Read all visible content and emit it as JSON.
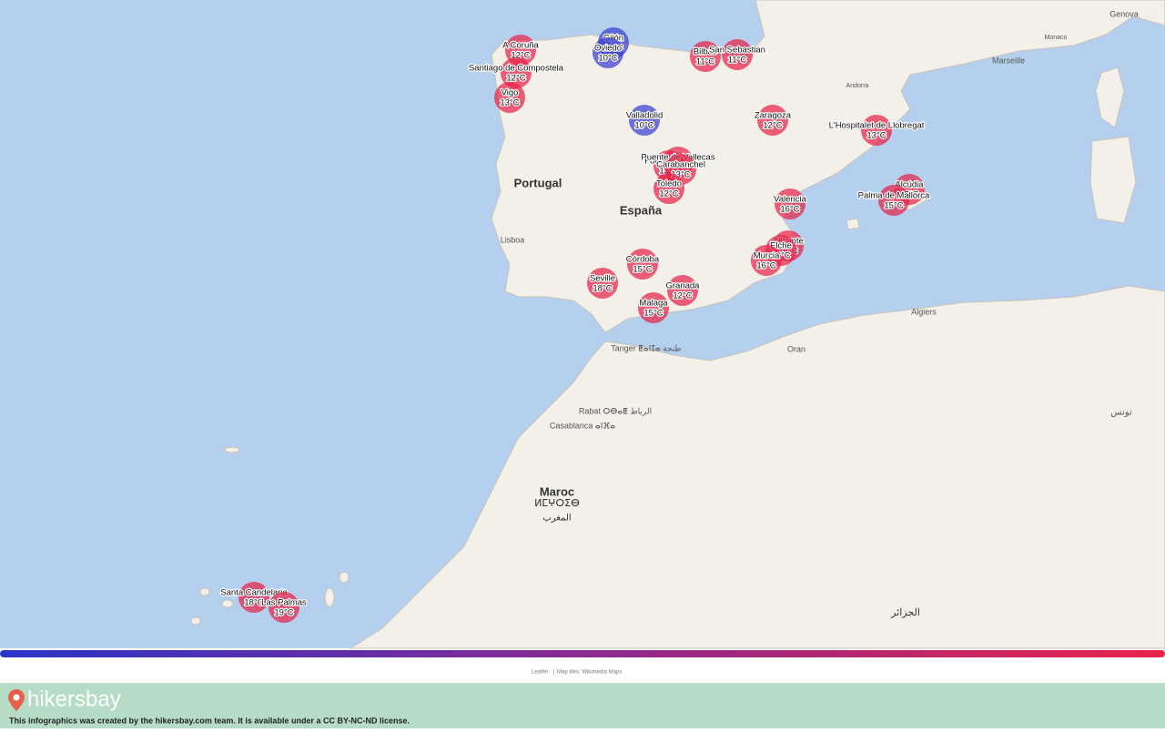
{
  "map": {
    "places": [
      "Portugal",
      "España",
      "Lisboa",
      "Maroc",
      "ⵍⵎⵖⵔⵉⴱ",
      "المغرب",
      "Rabat ⵔⴱⴰⵟ الرباط",
      "Casablanca ⴰⵏⴼⴰ",
      "Tanger ⵟⴰⵏⵊⴰ طنجة",
      "Algiers",
      "Oran",
      "Marseille",
      "Monaco",
      "Genova",
      "Andorra",
      "الجزائر",
      "تونس"
    ],
    "markers": [
      {
        "name": "A Coruña",
        "temp": "12°C",
        "color": "#e8234a"
      },
      {
        "name": "Santiago de Compostela",
        "temp": "12°C",
        "color": "#e8234a"
      },
      {
        "name": "Vigo",
        "temp": "13°C",
        "color": "#e8234a"
      },
      {
        "name": "Gijón",
        "temp": "10°C",
        "color": "#3a3fd0"
      },
      {
        "name": "Oviedo",
        "temp": "10°C",
        "color": "#3a3fd0"
      },
      {
        "name": "Bilbao",
        "temp": "11°C",
        "color": "#e8234a"
      },
      {
        "name": "San Sebastian",
        "temp": "11°C",
        "color": "#e8234a"
      },
      {
        "name": "Valladolid",
        "temp": "10°C",
        "color": "#3a3fd0"
      },
      {
        "name": "Zaragoza",
        "temp": "12°C",
        "color": "#e8234a"
      },
      {
        "name": "L'Hospitalet de Llobregat",
        "temp": "13°C",
        "color": "#e8234a"
      },
      {
        "name": "Fuenlabrada",
        "temp": "13°C",
        "color": "#e8234a"
      },
      {
        "name": "Puente de Vallecas",
        "temp": "13°C",
        "color": "#e8234a"
      },
      {
        "name": "Carabanchel",
        "temp": "13°C",
        "color": "#e8234a"
      },
      {
        "name": "Toledo",
        "temp": "12°C",
        "color": "#e8234a"
      },
      {
        "name": "Valencia",
        "temp": "16°C",
        "color": "#e8234a"
      },
      {
        "name": "Alcúdia",
        "temp": "15°C",
        "color": "#e8234a"
      },
      {
        "name": "Palma de Mallorca",
        "temp": "15°C",
        "color": "#e8234a"
      },
      {
        "name": "Alicante",
        "temp": "16°C",
        "color": "#e8234a"
      },
      {
        "name": "Elche",
        "temp": "16°C",
        "color": "#e8234a"
      },
      {
        "name": "Murcia",
        "temp": "16°C",
        "color": "#e8234a"
      },
      {
        "name": "Córdoba",
        "temp": "15°C",
        "color": "#e8234a"
      },
      {
        "name": "Seville",
        "temp": "18°C",
        "color": "#e8234a"
      },
      {
        "name": "Granada",
        "temp": "12°C",
        "color": "#e8234a"
      },
      {
        "name": "Malaga",
        "temp": "15°C",
        "color": "#e8234a"
      },
      {
        "name": "Santa Candelaria",
        "temp": "18°C",
        "color": "#e8234a"
      },
      {
        "name": "Las Palmas",
        "temp": "19°C",
        "color": "#e8234a"
      }
    ]
  },
  "attribution": [
    "Leaflet",
    "Map tiles: Wikimedia Maps"
  ],
  "footer": {
    "brand": "hikersbay",
    "license": "This infographics was created by the hikersbay.com team. It is available under a CC BY-NC-ND license."
  }
}
